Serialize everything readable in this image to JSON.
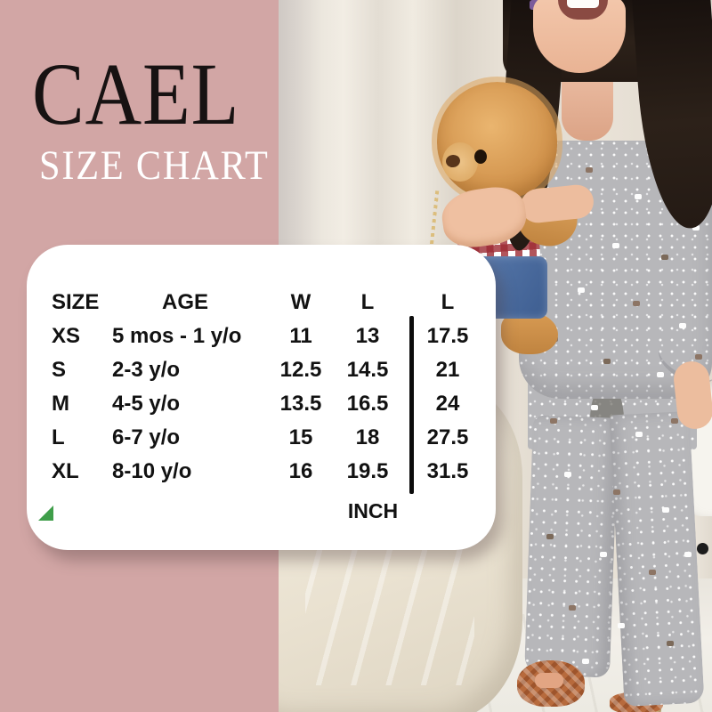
{
  "brand": {
    "name": "CAEL",
    "subtitle": "SIZE CHART"
  },
  "chart_data": {
    "type": "table",
    "title": "CAEL SIZE CHART",
    "columns": [
      "SIZE",
      "AGE",
      "W",
      "L",
      "L"
    ],
    "rows": [
      [
        "XS",
        "5 mos - 1 y/o",
        "11",
        "13",
        "17.5"
      ],
      [
        "S",
        "2-3 y/o",
        "12.5",
        "14.5",
        "21"
      ],
      [
        "M",
        "4-5 y/o",
        "13.5",
        "16.5",
        "24"
      ],
      [
        "L",
        "6-7 y/o",
        "15",
        "18",
        "27.5"
      ],
      [
        "XL",
        "8-10 y/o",
        "16",
        "19.5",
        "31.5"
      ]
    ],
    "unit": "INCH"
  },
  "colors": {
    "panel_pink": "#d2a6a5",
    "card_white": "#ffffff",
    "table_text": "#121212",
    "divider_black": "#0c0c0c",
    "triangle_green": "#3f9e4a",
    "brand_black": "#171212",
    "subtitle_white": "#ffffff"
  }
}
